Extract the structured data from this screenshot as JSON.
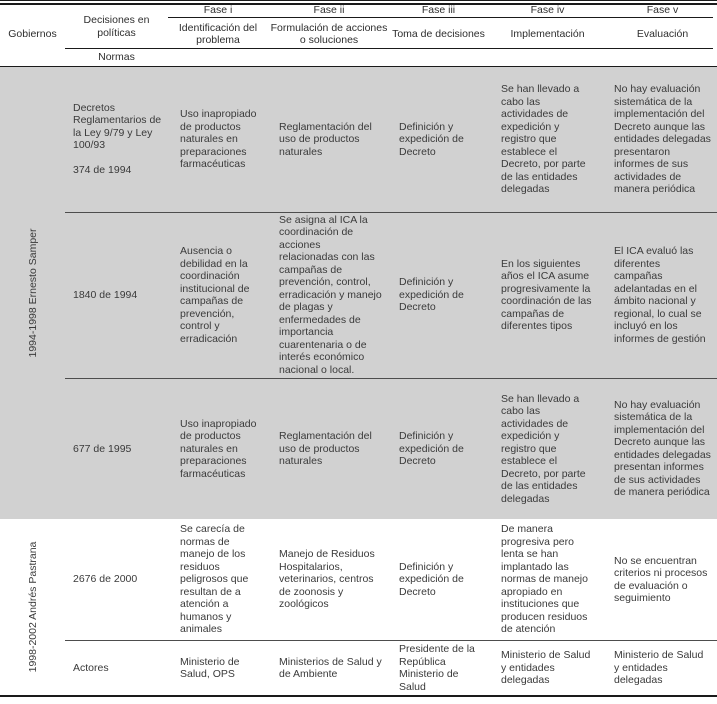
{
  "colors": {
    "group_shade": "#d1d1d1",
    "rule": "#1a1a1a",
    "row_separator": "#4d4d4d",
    "text": "#3a3a3a"
  },
  "table": {
    "header": {
      "gobiernos": "Gobiernos",
      "decisiones": "Decisiones en políticas",
      "normas": "Normas",
      "fases": [
        {
          "label": "Fase i",
          "sublabel": "Identificación del problema"
        },
        {
          "label": "Fase ii",
          "sublabel": "Formulación de acciones o soluciones"
        },
        {
          "label": "Fase iii",
          "sublabel": "Toma de decisiones"
        },
        {
          "label": "Fase iv",
          "sublabel": "Implementación"
        },
        {
          "label": "Fase v",
          "sublabel": "Evaluación"
        }
      ]
    },
    "groups": [
      {
        "label": "1994-1998 Ernesto Samper",
        "rows": [
          {
            "norma": "Decretos Reglamentarios de la Ley 9/79 y Ley 100/93\n\n374 de 1994",
            "fase_i": "Uso inapropiado de productos naturales en preparaciones farmacéuticas",
            "fase_ii": "Reglamentación del uso de productos naturales",
            "fase_iii": "Definición y expedición de Decreto",
            "fase_iv": "Se han llevado a cabo las actividades de expedición y registro que establece el Decreto, por parte de las entidades delegadas",
            "fase_v": "No hay evaluación sistemática de la implementación del Decreto aunque las entidades delegadas presentaron informes de sus actividades de manera periódica"
          },
          {
            "norma": "1840 de 1994",
            "fase_i": "Ausencia o debilidad en la coordinación institucional de campañas de prevención, control y erradicación",
            "fase_ii": "Se asigna al ICA la coordinación de acciones relacionadas con las campañas de prevención, control, erradicación y manejo de plagas y enfermedades de importancia cuarentenaria o de interés económico nacional o local.",
            "fase_iii": "Definición y expedición de Decreto",
            "fase_iv": "En los siguientes años el ICA asume progresivamente la coordinación de las campañas de diferentes tipos",
            "fase_v": "El ICA evaluó las diferentes campañas adelantadas en el ámbito nacional y regional, lo cual se incluyó en los informes de gestión"
          },
          {
            "norma": "677 de 1995",
            "fase_i": "Uso inapropiado de productos naturales en preparaciones farmacéuticas",
            "fase_ii": "Reglamentación del uso de productos naturales",
            "fase_iii": "Definición y expedición de Decreto",
            "fase_iv": "Se han llevado a cabo las actividades de expedición y registro que establece el Decreto, por parte de las entidades delegadas",
            "fase_v": "No hay evaluación sistemática de la implementación del Decreto aunque las entidades delegadas presentan informes de sus actividades de manera periódica"
          }
        ]
      },
      {
        "label": "1998-2002 Andrés Pastrana",
        "rows": [
          {
            "norma": "2676 de 2000",
            "fase_i": "Se carecía de normas de manejo de los residuos peligrosos que resultan de a atención a humanos y animales",
            "fase_ii": "Manejo de Residuos Hospitalarios, veterinarios, centros de zoonosis y zoológicos",
            "fase_iii": "Definición y expedición de Decreto",
            "fase_iv": "De manera progresiva pero lenta se han implantado las normas de manejo apropiado en instituciones que producen residuos de atención",
            "fase_v": "No se encuentran criterios ni procesos de evaluación o seguimiento"
          },
          {
            "norma": "Actores",
            "fase_i": "Ministerio de Salud, OPS",
            "fase_ii": "Ministerios de Salud y de Ambiente",
            "fase_iii": "Presidente de la República\nMinisterio de Salud",
            "fase_iv": "Ministerio de Salud y entidades delegadas",
            "fase_v": "Ministerio de Salud y entidades delegadas"
          }
        ]
      }
    ]
  }
}
